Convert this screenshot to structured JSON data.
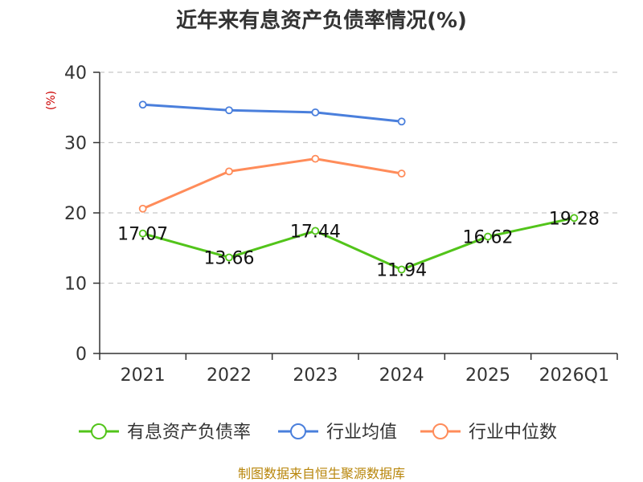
{
  "chart_data": {
    "type": "line",
    "title": "近年来有息资产负债率情况(%)",
    "ylabel": "(%)",
    "categories": [
      "2021",
      "2022",
      "2023",
      "2024",
      "2025",
      "2026Q1"
    ],
    "ylim": [
      0,
      40
    ],
    "yticks": [
      0,
      10,
      20,
      30,
      40
    ],
    "grid": true,
    "legend_position": "bottom",
    "series": [
      {
        "name": "有息资产负债率",
        "color": "#52c41a",
        "values": [
          17.07,
          13.66,
          17.44,
          11.94,
          16.62,
          19.28
        ],
        "labels": [
          "17.07",
          "13.66",
          "17.44",
          "11.94",
          "16.62",
          "19.28"
        ]
      },
      {
        "name": "行业均值",
        "color": "#4a7fdc",
        "values": [
          35.4,
          34.6,
          34.3,
          33.0,
          null,
          null
        ]
      },
      {
        "name": "行业中位数",
        "color": "#ff8c5a",
        "values": [
          20.6,
          25.9,
          27.7,
          25.6,
          null,
          null
        ]
      }
    ],
    "source": "制图数据来自恒生聚源数据库"
  }
}
